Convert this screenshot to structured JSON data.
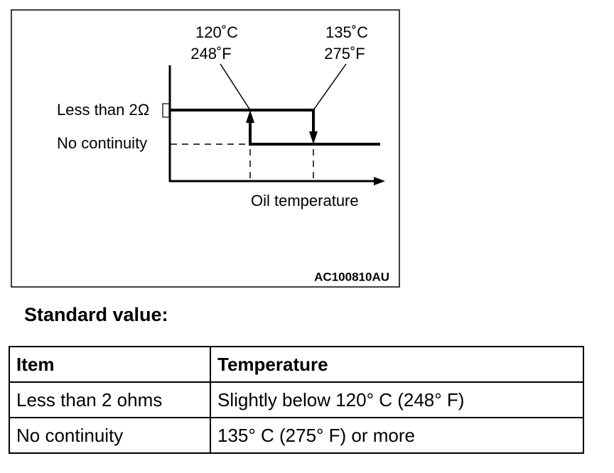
{
  "diagram": {
    "labels": {
      "low_temp_c": "120˚C",
      "low_temp_f": "248˚F",
      "high_temp_c": "135˚C",
      "high_temp_f": "275˚F",
      "high_level": "Less than 2Ω",
      "low_level": "No continuity",
      "x_axis": "Oil temperature",
      "figure_id": "AC100810AU"
    }
  },
  "heading": "Standard value:",
  "table": {
    "header": [
      "Item",
      "Temperature"
    ],
    "rows": [
      [
        "Less than 2 ohms",
        "Slightly below 120° C (248° F)"
      ],
      [
        "No continuity",
        "135° C (275° F) or more"
      ]
    ]
  }
}
